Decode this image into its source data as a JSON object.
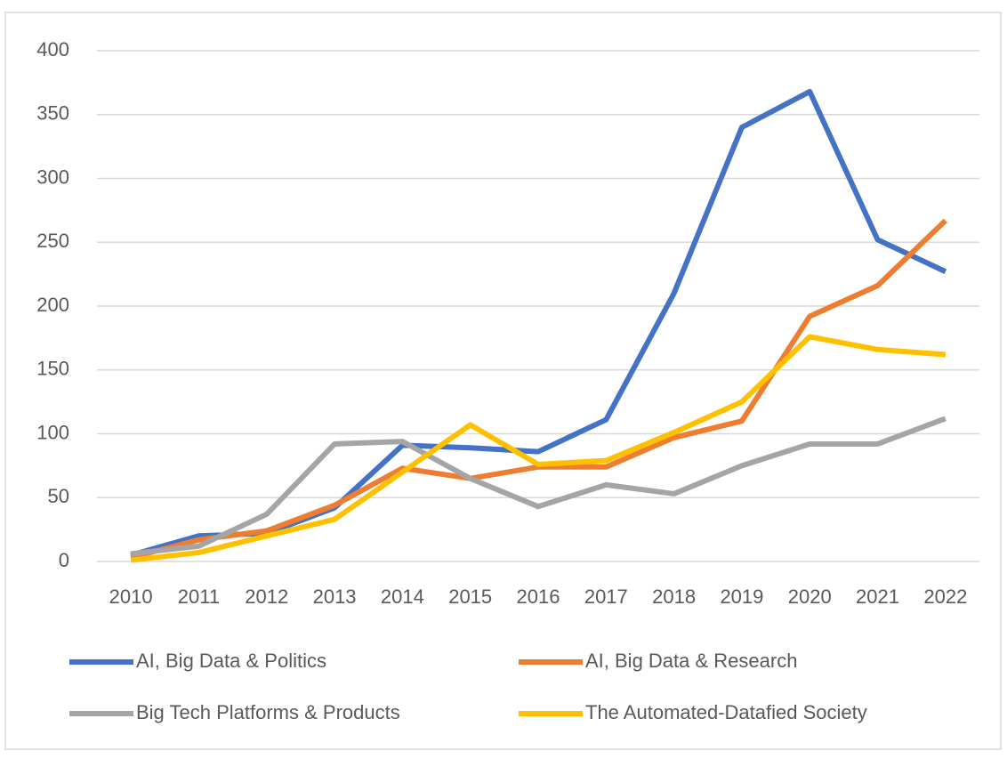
{
  "chart_data": {
    "type": "line",
    "categories": [
      "2010",
      "2011",
      "2012",
      "2013",
      "2014",
      "2015",
      "2016",
      "2017",
      "2018",
      "2019",
      "2020",
      "2021",
      "2022"
    ],
    "series": [
      {
        "name": "AI, Big Data & Politics",
        "color": "#4472c4",
        "values": [
          5,
          20,
          22,
          42,
          91,
          89,
          86,
          111,
          210,
          340,
          368,
          252,
          227
        ]
      },
      {
        "name": "AI, Big Data & Research",
        "color": "#ed7d31",
        "values": [
          3,
          17,
          24,
          44,
          73,
          65,
          74,
          74,
          97,
          110,
          192,
          216,
          267
        ]
      },
      {
        "name": "Big Tech Platforms & Products",
        "color": "#a5a5a5",
        "values": [
          6,
          12,
          37,
          92,
          94,
          65,
          43,
          60,
          53,
          75,
          92,
          92,
          112
        ]
      },
      {
        "name": "The Automated-Datafied Society",
        "color": "#ffc000",
        "values": [
          1,
          7,
          20,
          33,
          70,
          107,
          76,
          79,
          101,
          125,
          176,
          166,
          162
        ]
      }
    ],
    "ylim": [
      0,
      400
    ],
    "yticks": [
      0,
      50,
      100,
      150,
      200,
      250,
      300,
      350,
      400
    ],
    "grid": true,
    "legend": "bottom"
  }
}
